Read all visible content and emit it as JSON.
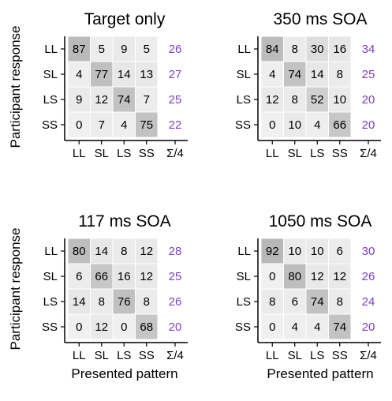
{
  "chart_data": [
    {
      "type": "heatmap",
      "title": "Target only",
      "ylabel": "Participant response",
      "xlabel": "",
      "categories_x": [
        "LL",
        "SL",
        "LS",
        "SS"
      ],
      "categories_y": [
        "LL",
        "SL",
        "LS",
        "SS"
      ],
      "values": [
        [
          87,
          5,
          9,
          5
        ],
        [
          4,
          77,
          14,
          13
        ],
        [
          9,
          12,
          74,
          7
        ],
        [
          0,
          7,
          4,
          75
        ]
      ],
      "row_sum_label": "Σ/4",
      "row_sums_div4": [
        26,
        27,
        25,
        22
      ]
    },
    {
      "type": "heatmap",
      "title": "350 ms SOA",
      "ylabel": "",
      "xlabel": "",
      "categories_x": [
        "LL",
        "SL",
        "LS",
        "SS"
      ],
      "categories_y": [
        "LL",
        "SL",
        "LS",
        "SS"
      ],
      "values": [
        [
          84,
          8,
          30,
          16
        ],
        [
          4,
          74,
          14,
          8
        ],
        [
          12,
          8,
          52,
          10
        ],
        [
          0,
          10,
          4,
          66
        ]
      ],
      "row_sum_label": "Σ/4",
      "row_sums_div4": [
        34,
        25,
        20,
        20
      ]
    },
    {
      "type": "heatmap",
      "title": "117 ms SOA",
      "ylabel": "Participant response",
      "xlabel": "Presented pattern",
      "categories_x": [
        "LL",
        "SL",
        "LS",
        "SS"
      ],
      "categories_y": [
        "LL",
        "SL",
        "LS",
        "SS"
      ],
      "values": [
        [
          80,
          14,
          8,
          12
        ],
        [
          6,
          66,
          16,
          12
        ],
        [
          14,
          8,
          76,
          8
        ],
        [
          0,
          12,
          0,
          68
        ]
      ],
      "row_sum_label": "Σ/4",
      "row_sums_div4": [
        28,
        25,
        26,
        20
      ]
    },
    {
      "type": "heatmap",
      "title": "1050 ms SOA",
      "ylabel": "",
      "xlabel": "Presented pattern",
      "categories_x": [
        "LL",
        "SL",
        "LS",
        "SS"
      ],
      "categories_y": [
        "LL",
        "SL",
        "LS",
        "SS"
      ],
      "values": [
        [
          92,
          10,
          10,
          6
        ],
        [
          0,
          80,
          12,
          12
        ],
        [
          8,
          6,
          74,
          8
        ],
        [
          0,
          4,
          4,
          74
        ]
      ],
      "row_sum_label": "Σ/4",
      "row_sums_div4": [
        30,
        26,
        24,
        20
      ]
    }
  ],
  "colors": {
    "sum_text": "#7b3fc4",
    "axis": "#000000",
    "cell_grid": "#ffffff"
  }
}
